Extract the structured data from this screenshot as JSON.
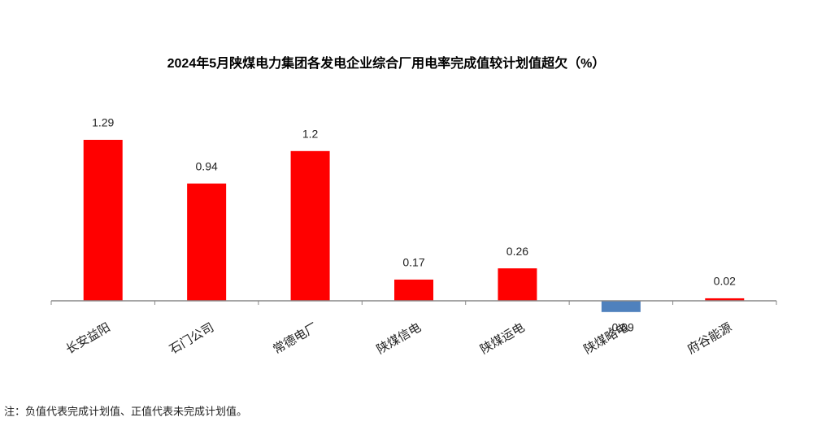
{
  "chart_data": {
    "type": "bar",
    "title": "2024年5月陕煤电力集团各发电企业综合厂用电率完成值较计划值超欠（%）",
    "categories": [
      "长安益阳",
      "石门公司",
      "常德电厂",
      "陕煤信电",
      "陕煤运电",
      "陕煤略电",
      "府谷能源"
    ],
    "values": [
      1.29,
      0.94,
      1.2,
      0.17,
      0.26,
      -0.09,
      0.02
    ],
    "color": "#ff0000",
    "negative_color": "#4f81bd"
  },
  "note": "注：负值代表完成计划值、正值代表未完成计划值。"
}
